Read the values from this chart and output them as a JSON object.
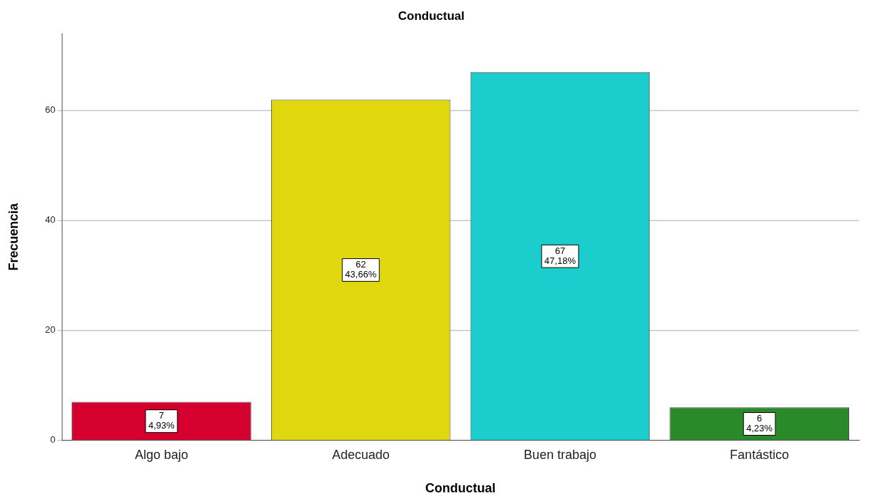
{
  "chart_data": {
    "type": "bar",
    "title": "Conductual",
    "xlabel": "Conductual",
    "ylabel": "Frecuencia",
    "categories": [
      "Algo bajo",
      "Adecuado",
      "Buen trabajo",
      "Fantástico"
    ],
    "values": [
      7,
      62,
      67,
      6
    ],
    "colors": [
      "#d6002f",
      "#e1d70f",
      "#1ccdcd",
      "#2a8a2a"
    ],
    "value_labels": [
      "7\n4,93%",
      "62\n43,66%",
      "67\n47,18%",
      "6\n4,23%"
    ],
    "ylim": [
      0,
      74
    ],
    "yticks": [
      0,
      20,
      40,
      60
    ],
    "grid": "y",
    "legend": false
  }
}
